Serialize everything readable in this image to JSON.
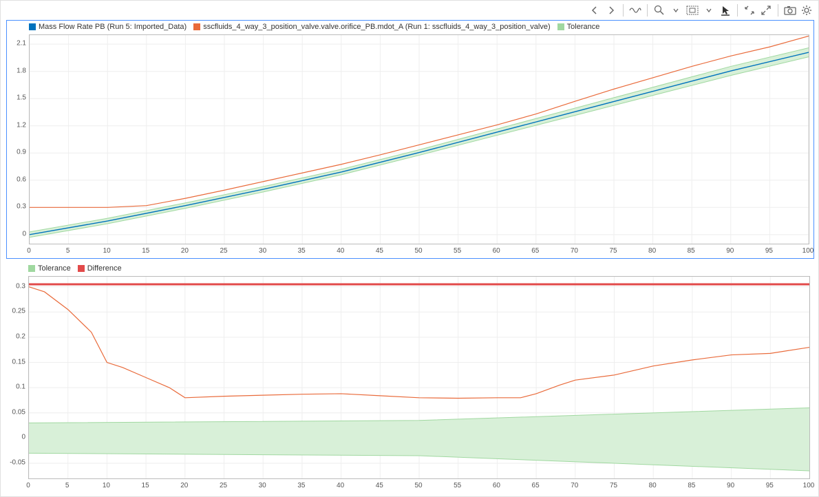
{
  "colors": {
    "series_blue": "#0072bd",
    "series_orange": "#e96a3a",
    "series_tol_green": "#a0d8a0",
    "series_tol_fill": "#d8f0d8",
    "series_diff_red": "#e24a4a",
    "grid": "#eeeeee",
    "axis_border": "#bbbbbb",
    "selection_border": "#4a90ff",
    "text": "#555555",
    "toolbar_icon": "#666666",
    "background": "#ffffff"
  },
  "toolbar": {
    "items": [
      {
        "name": "nav-back-icon",
        "kind": "back"
      },
      {
        "name": "nav-forward-icon",
        "kind": "forward"
      },
      {
        "name": "sep"
      },
      {
        "name": "signal-icon",
        "kind": "signal"
      },
      {
        "name": "sep"
      },
      {
        "name": "zoom-icon",
        "kind": "zoom"
      },
      {
        "name": "zoom-dropdown-icon",
        "kind": "caret"
      },
      {
        "name": "fit-icon",
        "kind": "fit"
      },
      {
        "name": "fit-dropdown-icon",
        "kind": "caret"
      },
      {
        "name": "cursor-icon",
        "kind": "cursor"
      },
      {
        "name": "sep"
      },
      {
        "name": "collapse-icon",
        "kind": "collapse"
      },
      {
        "name": "expand-icon",
        "kind": "expand"
      },
      {
        "name": "sep"
      },
      {
        "name": "snapshot-icon",
        "kind": "camera"
      },
      {
        "name": "settings-icon",
        "kind": "gear"
      }
    ]
  },
  "panel1": {
    "selected": true,
    "legend": [
      {
        "color": "#0072bd",
        "label": "Mass Flow Rate PB (Run 5: Imported_Data)"
      },
      {
        "color": "#e96a3a",
        "label": "sscfluids_4_way_3_position_valve.valve.orifice_PB.mdot_A (Run 1: sscfluids_4_way_3_position_valve)"
      },
      {
        "color": "#a0d8a0",
        "label": "Tolerance"
      }
    ],
    "chart": {
      "type": "line",
      "xlim": [
        0,
        100
      ],
      "ylim": [
        -0.1,
        2.2
      ],
      "xtick_step": 5,
      "yticks": [
        0,
        0.3,
        0.6,
        0.9,
        1.2,
        1.5,
        1.8,
        2.1
      ],
      "grid_color": "#eeeeee",
      "background_color": "#ffffff",
      "tolerance_band": {
        "fill": "#d8f0d8",
        "stroke": "#a0d8a0",
        "x": [
          0,
          10,
          20,
          30,
          40,
          50,
          60,
          70,
          80,
          90,
          100
        ],
        "lower": [
          -0.03,
          0.12,
          0.29,
          0.47,
          0.66,
          0.875,
          1.095,
          1.315,
          1.535,
          1.755,
          1.96
        ],
        "upper": [
          0.03,
          0.18,
          0.35,
          0.53,
          0.72,
          0.935,
          1.165,
          1.395,
          1.625,
          1.855,
          2.06
        ]
      },
      "series": [
        {
          "name": "blue",
          "color": "#0072bd",
          "width": 1.4,
          "x": [
            0,
            10,
            20,
            30,
            40,
            50,
            60,
            70,
            80,
            90,
            100
          ],
          "y": [
            0.0,
            0.15,
            0.32,
            0.5,
            0.69,
            0.905,
            1.13,
            1.355,
            1.58,
            1.805,
            2.01
          ]
        },
        {
          "name": "orange",
          "color": "#e96a3a",
          "width": 1.2,
          "x": [
            0,
            5,
            10,
            15,
            20,
            25,
            30,
            35,
            40,
            45,
            50,
            55,
            60,
            65,
            70,
            75,
            80,
            85,
            90,
            95,
            100
          ],
          "y": [
            0.3,
            0.3,
            0.3,
            0.32,
            0.4,
            0.49,
            0.585,
            0.68,
            0.775,
            0.88,
            0.99,
            1.1,
            1.21,
            1.33,
            1.47,
            1.605,
            1.73,
            1.855,
            1.97,
            2.07,
            2.19
          ]
        }
      ]
    }
  },
  "panel2": {
    "selected": false,
    "legend": [
      {
        "color": "#a0d8a0",
        "label": "Tolerance"
      },
      {
        "color": "#e24a4a",
        "label": "Difference"
      }
    ],
    "chart": {
      "type": "line",
      "xlim": [
        0,
        100
      ],
      "ylim": [
        -0.08,
        0.32
      ],
      "xtick_step": 5,
      "yticks": [
        -0.05,
        0,
        0.05,
        0.1,
        0.15,
        0.2,
        0.25,
        0.3
      ],
      "grid_color": "#eeeeee",
      "background_color": "#ffffff",
      "tolerance_band": {
        "fill": "#d8f0d8",
        "stroke": "#a0d8a0",
        "x": [
          0,
          50,
          100
        ],
        "lower": [
          -0.03,
          -0.035,
          -0.065
        ],
        "upper": [
          0.03,
          0.035,
          0.06
        ]
      },
      "series": [
        {
          "name": "threshold",
          "color": "#e24a4a",
          "width": 3,
          "x": [
            0,
            100
          ],
          "y": [
            0.305,
            0.305
          ]
        },
        {
          "name": "difference",
          "color": "#e96a3a",
          "width": 1.2,
          "x": [
            0,
            2,
            5,
            8,
            10,
            12,
            15,
            18,
            20,
            25,
            30,
            35,
            40,
            45,
            50,
            55,
            60,
            63,
            65,
            68,
            70,
            75,
            80,
            85,
            90,
            95,
            100
          ],
          "y": [
            0.3,
            0.29,
            0.255,
            0.21,
            0.15,
            0.14,
            0.12,
            0.1,
            0.08,
            0.083,
            0.085,
            0.087,
            0.088,
            0.084,
            0.08,
            0.079,
            0.08,
            0.08,
            0.088,
            0.105,
            0.115,
            0.125,
            0.143,
            0.155,
            0.165,
            0.168,
            0.18
          ]
        }
      ]
    }
  }
}
